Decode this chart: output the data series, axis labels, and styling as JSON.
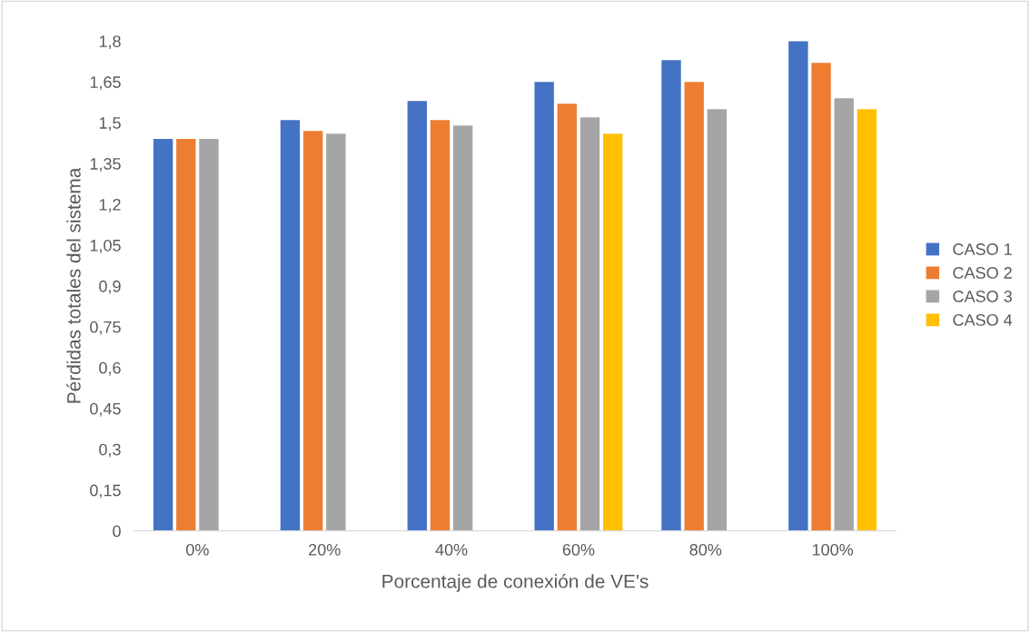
{
  "chart_data": {
    "type": "bar",
    "xlabel": "Porcentaje de conexión de VE's",
    "ylabel": "Pérdidas totales del sistema",
    "categories": [
      "0%",
      "20%",
      "40%",
      "60%",
      "80%",
      "100%"
    ],
    "series": [
      {
        "name": "CASO 1",
        "color": "#4472c4",
        "values": [
          1.44,
          1.51,
          1.58,
          1.65,
          1.73,
          1.8
        ]
      },
      {
        "name": "CASO 2",
        "color": "#ed7d31",
        "values": [
          1.44,
          1.47,
          1.51,
          1.57,
          1.65,
          1.72
        ]
      },
      {
        "name": "CASO 3",
        "color": "#a5a5a5",
        "values": [
          1.44,
          1.46,
          1.49,
          1.52,
          1.55,
          1.59
        ]
      },
      {
        "name": "CASO 4",
        "color": "#ffc000",
        "values": [
          null,
          null,
          null,
          1.46,
          null,
          1.55
        ]
      }
    ],
    "ylim": [
      0,
      1.8
    ],
    "yticks": [
      0,
      {
        "value": 0.15,
        "label": "0,15"
      },
      {
        "value": 0.3,
        "label": "0,3"
      },
      {
        "value": 0.45,
        "label": "0,45"
      },
      {
        "value": 0.6,
        "label": "0,6"
      },
      {
        "value": 0.75,
        "label": "0,75"
      },
      {
        "value": 0.9,
        "label": "0,9"
      },
      {
        "value": 1.05,
        "label": "1,05"
      },
      {
        "value": 1.2,
        "label": "1,2"
      },
      {
        "value": 1.35,
        "label": "1,35"
      },
      {
        "value": 1.5,
        "label": "1,5"
      },
      {
        "value": 1.65,
        "label": "1,65"
      },
      {
        "value": 1.8,
        "label": "1,8"
      }
    ],
    "grid": false,
    "legend": "right"
  }
}
